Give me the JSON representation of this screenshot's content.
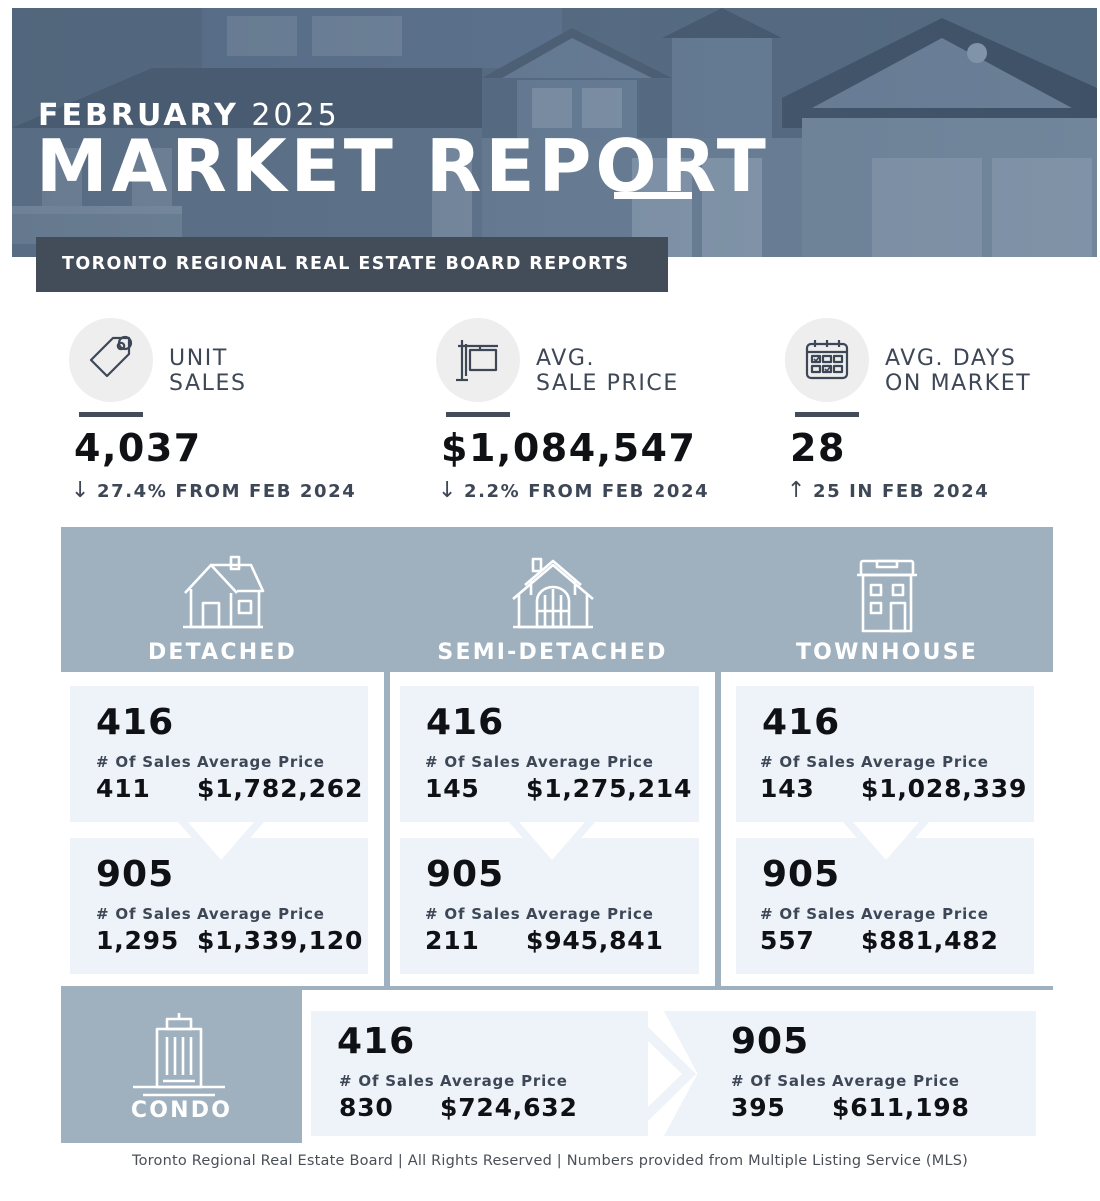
{
  "header": {
    "month": "FEBRUARY",
    "year": "2025",
    "title": "MARKET REPORT",
    "banner": "TORONTO REGIONAL REAL ESTATE BOARD REPORTS"
  },
  "stats": [
    {
      "label": "UNIT\nSALES",
      "value": "4,037",
      "direction": "down",
      "arrow": "↓",
      "change": "27.4% FROM FEB 2024",
      "icon": "price-tag-icon"
    },
    {
      "label": "AVG.\nSALE PRICE",
      "value": "$1,084,547",
      "direction": "down",
      "arrow": "↓",
      "change": "2.2% FROM FEB 2024",
      "icon": "for-sale-sign-icon"
    },
    {
      "label": "AVG. DAYS\nON MARKET",
      "value": "28",
      "direction": "up",
      "arrow": "↑",
      "change": "25 IN FEB 2024",
      "icon": "calendar-icon"
    }
  ],
  "property_types": [
    {
      "name": "DETACHED",
      "icon": "detached-house-icon",
      "regions": [
        {
          "code": "416",
          "sales_label": "# Of Sales",
          "price_label": "Average Price",
          "sales": "411",
          "price": "$1,782,262"
        },
        {
          "code": "905",
          "sales_label": "# Of Sales",
          "price_label": "Average Price",
          "sales": "1,295",
          "price": "$1,339,120"
        }
      ]
    },
    {
      "name": "SEMI-DETACHED",
      "icon": "semi-detached-house-icon",
      "regions": [
        {
          "code": "416",
          "sales_label": "# Of Sales",
          "price_label": "Average Price",
          "sales": "145",
          "price": "$1,275,214"
        },
        {
          "code": "905",
          "sales_label": "# Of Sales",
          "price_label": "Average Price",
          "sales": "211",
          "price": "$945,841"
        }
      ]
    },
    {
      "name": "TOWNHOUSE",
      "icon": "townhouse-icon",
      "regions": [
        {
          "code": "416",
          "sales_label": "# Of Sales",
          "price_label": "Average Price",
          "sales": "143",
          "price": "$1,028,339"
        },
        {
          "code": "905",
          "sales_label": "# Of Sales",
          "price_label": "Average Price",
          "sales": "557",
          "price": "$881,482"
        }
      ]
    }
  ],
  "condo": {
    "name": "CONDO",
    "icon": "condo-building-icon",
    "regions": [
      {
        "code": "416",
        "sales_label": "# Of Sales",
        "price_label": "Average Price",
        "sales": "830",
        "price": "$724,632"
      },
      {
        "code": "905",
        "sales_label": "# Of Sales",
        "price_label": "Average Price",
        "sales": "395",
        "price": "$611,198"
      }
    ]
  },
  "footer": "Toronto Regional Real Estate Board | All Rights Reserved | Numbers provided from Multiple Listing Service (MLS)",
  "colors": {
    "banner": "#434c59",
    "panel": "#9fb0bf",
    "card": "#eef3f9",
    "text_dark": "#0f1115",
    "text_muted": "#3d4756"
  }
}
